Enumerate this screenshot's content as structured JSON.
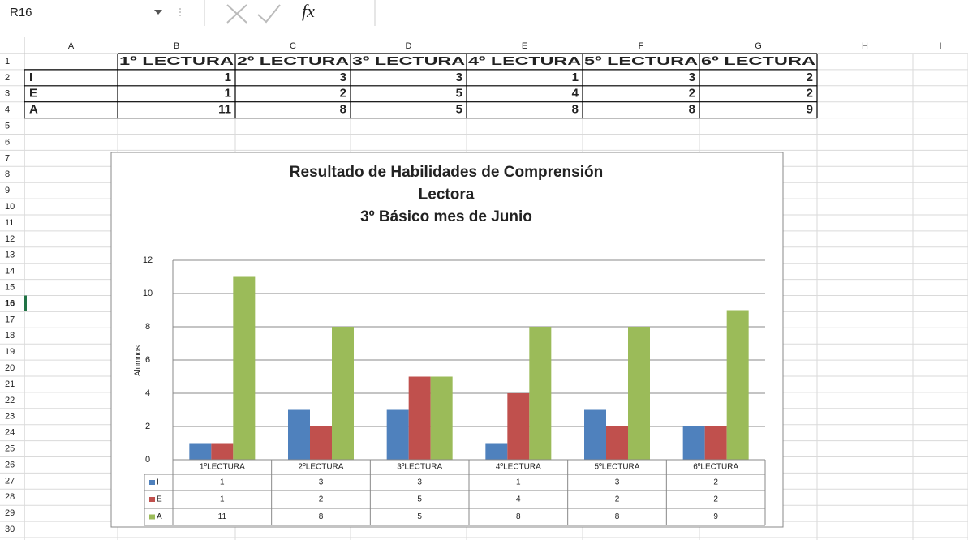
{
  "name_box": "R16",
  "formula_label": "fx",
  "column_headers": [
    "A",
    "B",
    "C",
    "D",
    "E",
    "F",
    "G",
    "H",
    "I"
  ],
  "row_headers": [
    1,
    2,
    3,
    4,
    5,
    6,
    7,
    8,
    9,
    10,
    11,
    12,
    13,
    14,
    15,
    16,
    17,
    18,
    19,
    20,
    21,
    22,
    23,
    24,
    25,
    26,
    27,
    28,
    29,
    30
  ],
  "sheet": {
    "header_row": [
      "1º LECTURA",
      "2º LECTURA",
      "3º LECTURA",
      "4º LECTURA",
      "5º LECTURA",
      "6º LECTURA"
    ],
    "rows": [
      {
        "label": "I",
        "values": [
          1,
          3,
          3,
          1,
          3,
          2
        ]
      },
      {
        "label": "E",
        "values": [
          1,
          2,
          5,
          4,
          2,
          2
        ]
      },
      {
        "label": "A",
        "values": [
          11,
          8,
          5,
          8,
          8,
          9
        ]
      }
    ]
  },
  "chart_data": {
    "type": "bar",
    "title_lines": [
      "Resultado de Habilidades de Comprensión",
      "Lectora",
      "3º Básico mes de Junio"
    ],
    "y_label": "Alumnos",
    "categories": [
      "1ºLECTURA",
      "2ºLECTURA",
      "3ºLECTURA",
      "4ºLECTURA",
      "5ºLECTURA",
      "6ºLECTURA"
    ],
    "series": [
      {
        "name": "I",
        "color": "#4f81bd",
        "values": [
          1,
          3,
          3,
          1,
          3,
          2
        ]
      },
      {
        "name": "E",
        "color": "#c0504d",
        "values": [
          1,
          2,
          5,
          4,
          2,
          2
        ]
      },
      {
        "name": "A",
        "color": "#9bbb59",
        "values": [
          11,
          8,
          5,
          8,
          8,
          9
        ]
      }
    ],
    "ylim": [
      0,
      12
    ],
    "yticks": [
      0,
      2,
      4,
      6,
      8,
      10,
      12
    ],
    "grid": true,
    "data_table": true
  }
}
